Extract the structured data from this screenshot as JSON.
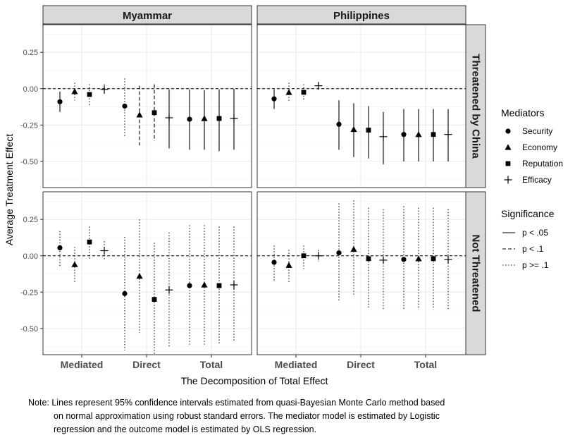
{
  "chart_data": {
    "type": "scatter",
    "subtype": "point-range faceted",
    "xlabel": "The Decomposition of Total Effect",
    "ylabel": "Average Treatment Effect",
    "ylim": [
      -0.68,
      0.44
    ],
    "yticks": [
      0.25,
      0.0,
      -0.25,
      -0.5
    ],
    "ytick_labels": [
      "0.25",
      "0.00",
      "-0.25",
      "-0.50"
    ],
    "xcategories": [
      "Mediated",
      "Direct",
      "Total"
    ],
    "columns": [
      "Myammar",
      "Philippines"
    ],
    "rows": [
      "Threatened by China",
      "Not Threatened"
    ],
    "grid": true,
    "reference_line": 0,
    "legend_position": "right",
    "legends": {
      "mediators": {
        "title": "Mediators",
        "items": [
          {
            "label": "Security",
            "shape": "circle"
          },
          {
            "label": "Economy",
            "shape": "triangle"
          },
          {
            "label": "Reputation",
            "shape": "square"
          },
          {
            "label": "Efficacy",
            "shape": "plus"
          }
        ]
      },
      "significance": {
        "title": "Significance",
        "items": [
          {
            "label": "p < .05",
            "linetype": "solid"
          },
          {
            "label": "p < .1",
            "linetype": "dashed"
          },
          {
            "label": "p >= .1",
            "linetype": "dotted"
          }
        ]
      }
    },
    "panels": [
      {
        "column": "Myammar",
        "row": "Threatened by China",
        "points": [
          {
            "group": "Mediated",
            "mediator": "Security",
            "estimate": -0.09,
            "lower": -0.16,
            "upper": -0.02,
            "sig": "solid"
          },
          {
            "group": "Mediated",
            "mediator": "Economy",
            "estimate": -0.02,
            "lower": -0.08,
            "upper": 0.04,
            "sig": "dotted"
          },
          {
            "group": "Mediated",
            "mediator": "Reputation",
            "estimate": -0.04,
            "lower": -0.12,
            "upper": 0.03,
            "sig": "dotted"
          },
          {
            "group": "Mediated",
            "mediator": "Efficacy",
            "estimate": -0.005,
            "lower": -0.04,
            "upper": 0.03,
            "sig": "dotted"
          },
          {
            "group": "Direct",
            "mediator": "Security",
            "estimate": -0.12,
            "lower": -0.33,
            "upper": 0.07,
            "sig": "dotted"
          },
          {
            "group": "Direct",
            "mediator": "Economy",
            "estimate": -0.18,
            "lower": -0.39,
            "upper": 0.02,
            "sig": "dashed"
          },
          {
            "group": "Direct",
            "mediator": "Reputation",
            "estimate": -0.165,
            "lower": -0.36,
            "upper": 0.03,
            "sig": "dashed"
          },
          {
            "group": "Direct",
            "mediator": "Efficacy",
            "estimate": -0.2,
            "lower": -0.41,
            "upper": -0.005,
            "sig": "solid"
          },
          {
            "group": "Total",
            "mediator": "Security",
            "estimate": -0.21,
            "lower": -0.42,
            "upper": -0.005,
            "sig": "solid"
          },
          {
            "group": "Total",
            "mediator": "Economy",
            "estimate": -0.205,
            "lower": -0.42,
            "upper": -0.01,
            "sig": "solid"
          },
          {
            "group": "Total",
            "mediator": "Reputation",
            "estimate": -0.205,
            "lower": -0.43,
            "upper": -0.005,
            "sig": "solid"
          },
          {
            "group": "Total",
            "mediator": "Efficacy",
            "estimate": -0.205,
            "lower": -0.42,
            "upper": 0.0,
            "sig": "solid"
          }
        ]
      },
      {
        "column": "Philippines",
        "row": "Threatened by China",
        "points": [
          {
            "group": "Mediated",
            "mediator": "Security",
            "estimate": -0.07,
            "lower": -0.14,
            "upper": -0.005,
            "sig": "solid"
          },
          {
            "group": "Mediated",
            "mediator": "Economy",
            "estimate": -0.025,
            "lower": -0.09,
            "upper": 0.04,
            "sig": "dotted"
          },
          {
            "group": "Mediated",
            "mediator": "Reputation",
            "estimate": -0.025,
            "lower": -0.08,
            "upper": 0.03,
            "sig": "dotted"
          },
          {
            "group": "Mediated",
            "mediator": "Efficacy",
            "estimate": 0.02,
            "lower": 0.0,
            "upper": 0.04,
            "sig": "solid"
          },
          {
            "group": "Direct",
            "mediator": "Security",
            "estimate": -0.245,
            "lower": -0.42,
            "upper": -0.08,
            "sig": "solid"
          },
          {
            "group": "Direct",
            "mediator": "Economy",
            "estimate": -0.28,
            "lower": -0.47,
            "upper": -0.1,
            "sig": "solid"
          },
          {
            "group": "Direct",
            "mediator": "Reputation",
            "estimate": -0.285,
            "lower": -0.48,
            "upper": -0.12,
            "sig": "solid"
          },
          {
            "group": "Direct",
            "mediator": "Efficacy",
            "estimate": -0.33,
            "lower": -0.52,
            "upper": -0.16,
            "sig": "solid"
          },
          {
            "group": "Total",
            "mediator": "Security",
            "estimate": -0.315,
            "lower": -0.5,
            "upper": -0.14,
            "sig": "solid"
          },
          {
            "group": "Total",
            "mediator": "Economy",
            "estimate": -0.315,
            "lower": -0.5,
            "upper": -0.14,
            "sig": "solid"
          },
          {
            "group": "Total",
            "mediator": "Reputation",
            "estimate": -0.315,
            "lower": -0.5,
            "upper": -0.14,
            "sig": "solid"
          },
          {
            "group": "Total",
            "mediator": "Efficacy",
            "estimate": -0.315,
            "lower": -0.5,
            "upper": -0.14,
            "sig": "solid"
          }
        ]
      },
      {
        "column": "Myammar",
        "row": "Not Threatened",
        "points": [
          {
            "group": "Mediated",
            "mediator": "Security",
            "estimate": 0.055,
            "lower": -0.07,
            "upper": 0.17,
            "sig": "dotted"
          },
          {
            "group": "Mediated",
            "mediator": "Economy",
            "estimate": -0.06,
            "lower": -0.19,
            "upper": 0.06,
            "sig": "dotted"
          },
          {
            "group": "Mediated",
            "mediator": "Reputation",
            "estimate": 0.095,
            "lower": -0.02,
            "upper": 0.2,
            "sig": "dotted"
          },
          {
            "group": "Mediated",
            "mediator": "Efficacy",
            "estimate": 0.035,
            "lower": -0.03,
            "upper": 0.1,
            "sig": "dotted"
          },
          {
            "group": "Direct",
            "mediator": "Security",
            "estimate": -0.26,
            "lower": -0.65,
            "upper": 0.13,
            "sig": "dotted"
          },
          {
            "group": "Direct",
            "mediator": "Economy",
            "estimate": -0.14,
            "lower": -0.53,
            "upper": 0.25,
            "sig": "dotted"
          },
          {
            "group": "Direct",
            "mediator": "Reputation",
            "estimate": -0.3,
            "lower": -0.68,
            "upper": 0.09,
            "sig": "dotted"
          },
          {
            "group": "Direct",
            "mediator": "Efficacy",
            "estimate": -0.235,
            "lower": -0.63,
            "upper": 0.16,
            "sig": "dotted"
          },
          {
            "group": "Total",
            "mediator": "Security",
            "estimate": -0.205,
            "lower": -0.61,
            "upper": 0.21,
            "sig": "dotted"
          },
          {
            "group": "Total",
            "mediator": "Economy",
            "estimate": -0.2,
            "lower": -0.61,
            "upper": 0.21,
            "sig": "dotted"
          },
          {
            "group": "Total",
            "mediator": "Reputation",
            "estimate": -0.205,
            "lower": -0.61,
            "upper": 0.2,
            "sig": "dotted"
          },
          {
            "group": "Total",
            "mediator": "Efficacy",
            "estimate": -0.2,
            "lower": -0.59,
            "upper": 0.2,
            "sig": "dotted"
          }
        ]
      },
      {
        "column": "Philippines",
        "row": "Not Threatened",
        "points": [
          {
            "group": "Mediated",
            "mediator": "Security",
            "estimate": -0.045,
            "lower": -0.17,
            "upper": 0.07,
            "sig": "dotted"
          },
          {
            "group": "Mediated",
            "mediator": "Economy",
            "estimate": -0.065,
            "lower": -0.19,
            "upper": 0.04,
            "sig": "dotted"
          },
          {
            "group": "Mediated",
            "mediator": "Reputation",
            "estimate": 0.0,
            "lower": -0.09,
            "upper": 0.07,
            "sig": "dotted"
          },
          {
            "group": "Mediated",
            "mediator": "Efficacy",
            "estimate": 0.0,
            "lower": -0.04,
            "upper": 0.04,
            "sig": "dotted"
          },
          {
            "group": "Direct",
            "mediator": "Security",
            "estimate": 0.02,
            "lower": -0.31,
            "upper": 0.36,
            "sig": "dotted"
          },
          {
            "group": "Direct",
            "mediator": "Economy",
            "estimate": 0.045,
            "lower": -0.28,
            "upper": 0.38,
            "sig": "dotted"
          },
          {
            "group": "Direct",
            "mediator": "Reputation",
            "estimate": -0.02,
            "lower": -0.36,
            "upper": 0.33,
            "sig": "dotted"
          },
          {
            "group": "Direct",
            "mediator": "Efficacy",
            "estimate": -0.03,
            "lower": -0.37,
            "upper": 0.32,
            "sig": "dotted"
          },
          {
            "group": "Total",
            "mediator": "Security",
            "estimate": -0.025,
            "lower": -0.37,
            "upper": 0.34,
            "sig": "dotted"
          },
          {
            "group": "Total",
            "mediator": "Economy",
            "estimate": -0.02,
            "lower": -0.37,
            "upper": 0.33,
            "sig": "dotted"
          },
          {
            "group": "Total",
            "mediator": "Reputation",
            "estimate": -0.02,
            "lower": -0.37,
            "upper": 0.33,
            "sig": "dotted"
          },
          {
            "group": "Total",
            "mediator": "Efficacy",
            "estimate": -0.025,
            "lower": -0.37,
            "upper": 0.32,
            "sig": "dotted"
          }
        ]
      }
    ]
  },
  "note": {
    "line1": "Note: Lines represent 95% confidence intervals estimated from quasi-Bayesian Monte Carlo method based",
    "line2": "on normal approximation using robust standard errors. The mediator model is estimated by Logistic",
    "line3": "regression and the outcome model is estimated by OLS regression."
  },
  "colors": {
    "strip_fill": "#d9d9d9",
    "grid": "#ebebeb",
    "ink": "#000000",
    "axis_text": "#4d4d4d"
  }
}
